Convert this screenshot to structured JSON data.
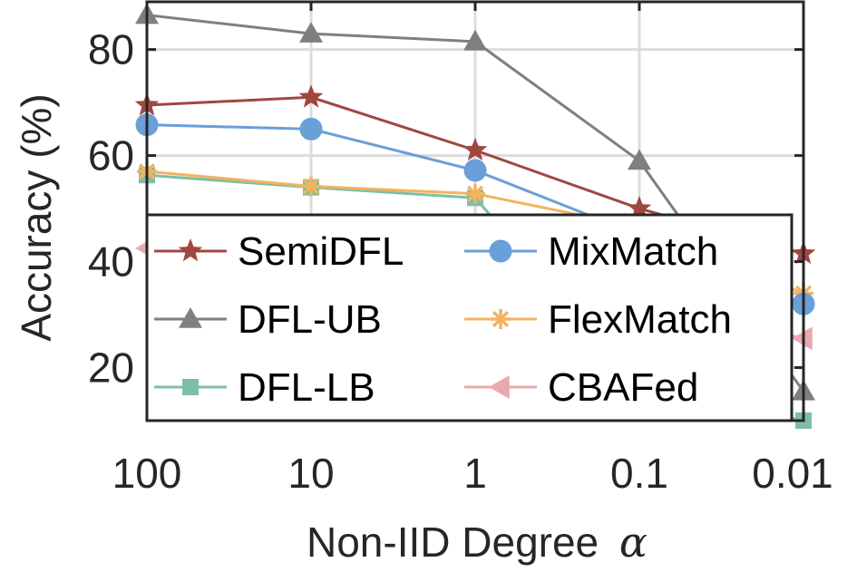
{
  "chart_data": {
    "type": "line",
    "categories": [
      "100",
      "10",
      "1",
      "0.1",
      "0.01"
    ],
    "xlabel": "Non-IID Degree",
    "xlabel_symbol": "α",
    "ylabel": "Accuracy (%)",
    "ylim": [
      10,
      89
    ],
    "yticks": [
      20,
      40,
      60,
      80
    ],
    "grid": true,
    "legend": {
      "placement": "lower-left, inside",
      "columns": 2
    },
    "series": [
      {
        "name": "SemiDFL",
        "color": "#A0473F",
        "marker": "star",
        "values": [
          69.5,
          71.0,
          61.0,
          50.0,
          41.5
        ]
      },
      {
        "name": "MixMatch",
        "color": "#6A9FD8",
        "marker": "circle",
        "values": [
          65.8,
          65.0,
          57.2,
          45.0,
          32.0
        ]
      },
      {
        "name": "DFL-UB",
        "color": "#7F7F7F",
        "marker": "triangle",
        "values": [
          86.5,
          83.0,
          81.5,
          59.0,
          15.5
        ]
      },
      {
        "name": "FlexMatch",
        "color": "#F2B35E",
        "marker": "asterisk",
        "values": [
          57.0,
          54.2,
          52.8,
          46.5,
          34.0
        ]
      },
      {
        "name": "DFL-LB",
        "color": "#7DBFA6",
        "marker": "square",
        "values": [
          56.3,
          54.0,
          52.0,
          16.5,
          10.0
        ]
      },
      {
        "name": "CBAFed",
        "color": "#E8AAAE",
        "marker": "triangle-left",
        "values": [
          42.5,
          41.5,
          37.0,
          32.5,
          25.5
        ]
      }
    ]
  }
}
